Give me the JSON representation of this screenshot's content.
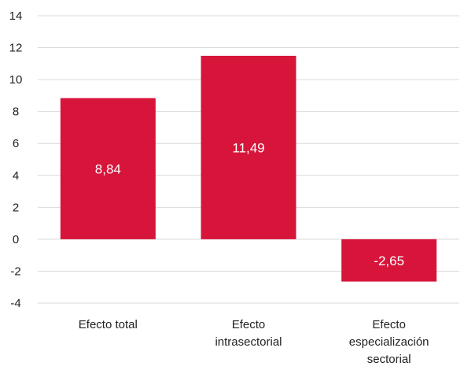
{
  "chart_data": {
    "type": "bar",
    "title": "",
    "xlabel": "",
    "ylabel": "",
    "categories": [
      [
        "Efecto total"
      ],
      [
        "Efecto",
        "intrasectorial"
      ],
      [
        "Efecto",
        "especialización",
        "sectorial"
      ]
    ],
    "values": [
      8.84,
      11.49,
      -2.65
    ],
    "data_labels": [
      "8,84",
      "11,49",
      "-2,65"
    ],
    "ylim": [
      -4,
      14
    ],
    "yticks": [
      14,
      12,
      10,
      8,
      6,
      4,
      2,
      0,
      -2,
      -4
    ],
    "ytick_labels": [
      "14",
      "12",
      "10",
      "8",
      "6",
      "4",
      "2",
      "0",
      "-2",
      "-4"
    ],
    "grid": true,
    "legend": "none",
    "bar_color": "#d7153a"
  }
}
